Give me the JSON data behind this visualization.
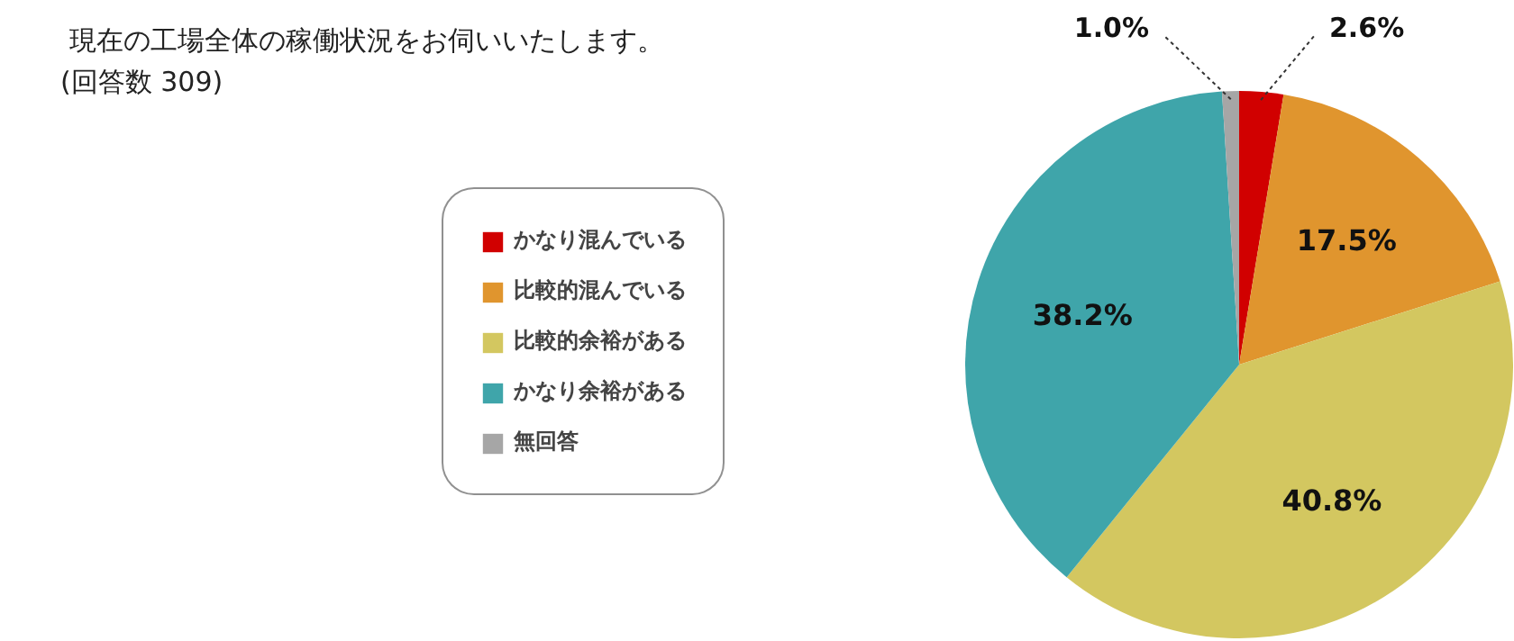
{
  "chart_data": {
    "type": "pie",
    "title": "現在の工場全体の稼働状況をお伺いいたします。",
    "subtitle": "(回答数 309)",
    "categories": [
      "かなり混んでいる",
      "比較的混んでいる",
      "比較的余裕がある",
      "かなり余裕がある",
      "無回答"
    ],
    "values": [
      2.6,
      17.5,
      40.8,
      38.2,
      1.0
    ],
    "colors": [
      "#d10000",
      "#e0952e",
      "#d3c760",
      "#3fa5aa",
      "#a6a6a6"
    ],
    "value_labels": [
      "2.6%",
      "17.5%",
      "40.8%",
      "38.2%",
      "1.0%"
    ],
    "legend": "left"
  }
}
